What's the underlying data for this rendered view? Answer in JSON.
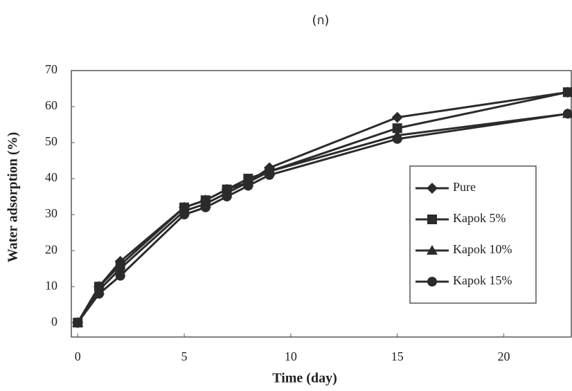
{
  "chart_data": {
    "type": "line",
    "title": "(ก)",
    "x_label": "Time (day)",
    "y_label": "Water adsorption (%)",
    "x": [
      0,
      1,
      2,
      5,
      6,
      7,
      8,
      9,
      15,
      23
    ],
    "series": [
      {
        "name": "Pure",
        "color": "#2b2b2b",
        "marker": "diamond",
        "values": [
          0,
          10,
          17,
          32,
          34,
          37,
          39,
          43,
          57,
          64
        ]
      },
      {
        "name": "Kapok 5%",
        "color": "#2b2b2b",
        "marker": "square",
        "values": [
          0,
          10,
          16,
          32,
          34,
          37,
          40,
          42,
          54,
          64
        ]
      },
      {
        "name": "Kapok 10%",
        "color": "#2b2b2b",
        "marker": "triangle",
        "values": [
          0,
          9,
          15,
          31,
          33,
          36,
          39,
          42,
          52,
          58
        ]
      },
      {
        "name": "Kapok 15%",
        "color": "#2b2b2b",
        "marker": "circle",
        "values": [
          0,
          8,
          13,
          30,
          32,
          35,
          38,
          41,
          51,
          58
        ]
      }
    ],
    "xlim": [
      -0.3,
      23.2
    ],
    "xticks": [
      0,
      5,
      10,
      15,
      20
    ],
    "ylim": [
      -4,
      70
    ],
    "yticks": [
      0,
      10,
      20,
      30,
      40,
      50,
      60,
      70
    ],
    "legend": "right"
  }
}
